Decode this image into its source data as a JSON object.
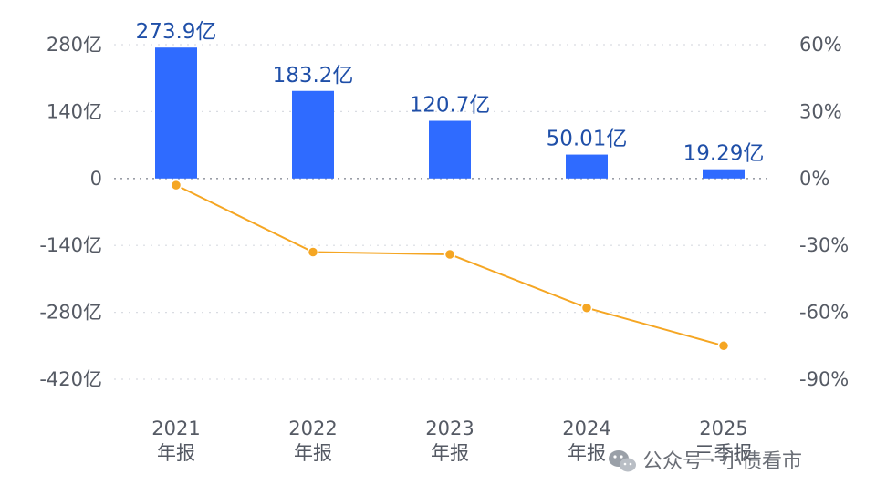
{
  "chart_data": {
    "type": "bar+line",
    "categories": [
      {
        "line1": "2021",
        "line2": "年报"
      },
      {
        "line1": "2022",
        "line2": "年报"
      },
      {
        "line1": "2023",
        "line2": "年报"
      },
      {
        "line1": "2024",
        "line2": "年报"
      },
      {
        "line1": "2025",
        "line2": "三季报"
      }
    ],
    "bar_series": {
      "values": [
        273.9,
        183.2,
        120.7,
        50.01,
        19.29
      ],
      "labels": [
        "273.9亿",
        "183.2亿",
        "120.7亿",
        "50.01亿",
        "19.29亿"
      ],
      "color": "#2f6bff"
    },
    "line_series": {
      "values": [
        -3,
        -33,
        -34,
        -58,
        -75
      ],
      "color": "#f5a623"
    },
    "left_axis": {
      "ticks": [
        280,
        140,
        0,
        -140,
        -280,
        -420
      ],
      "tick_labels": [
        "280亿",
        "140亿",
        "0",
        "-140亿",
        "-280亿",
        "-420亿"
      ],
      "ylim": [
        -420,
        280
      ]
    },
    "right_axis": {
      "ticks": [
        60,
        30,
        0,
        -30,
        -60,
        -90
      ],
      "tick_labels": [
        "60%",
        "30%",
        "0%",
        "-30%",
        "-60%",
        "-90%"
      ],
      "ylim": [
        -90,
        60
      ]
    },
    "grid": "dotted horizontal",
    "gridline_color": "#d9dce2",
    "zero_line_color": "#9a9ea6"
  },
  "watermark": {
    "text": "公众号 · 小债看市",
    "icon": "wechat-icon"
  }
}
